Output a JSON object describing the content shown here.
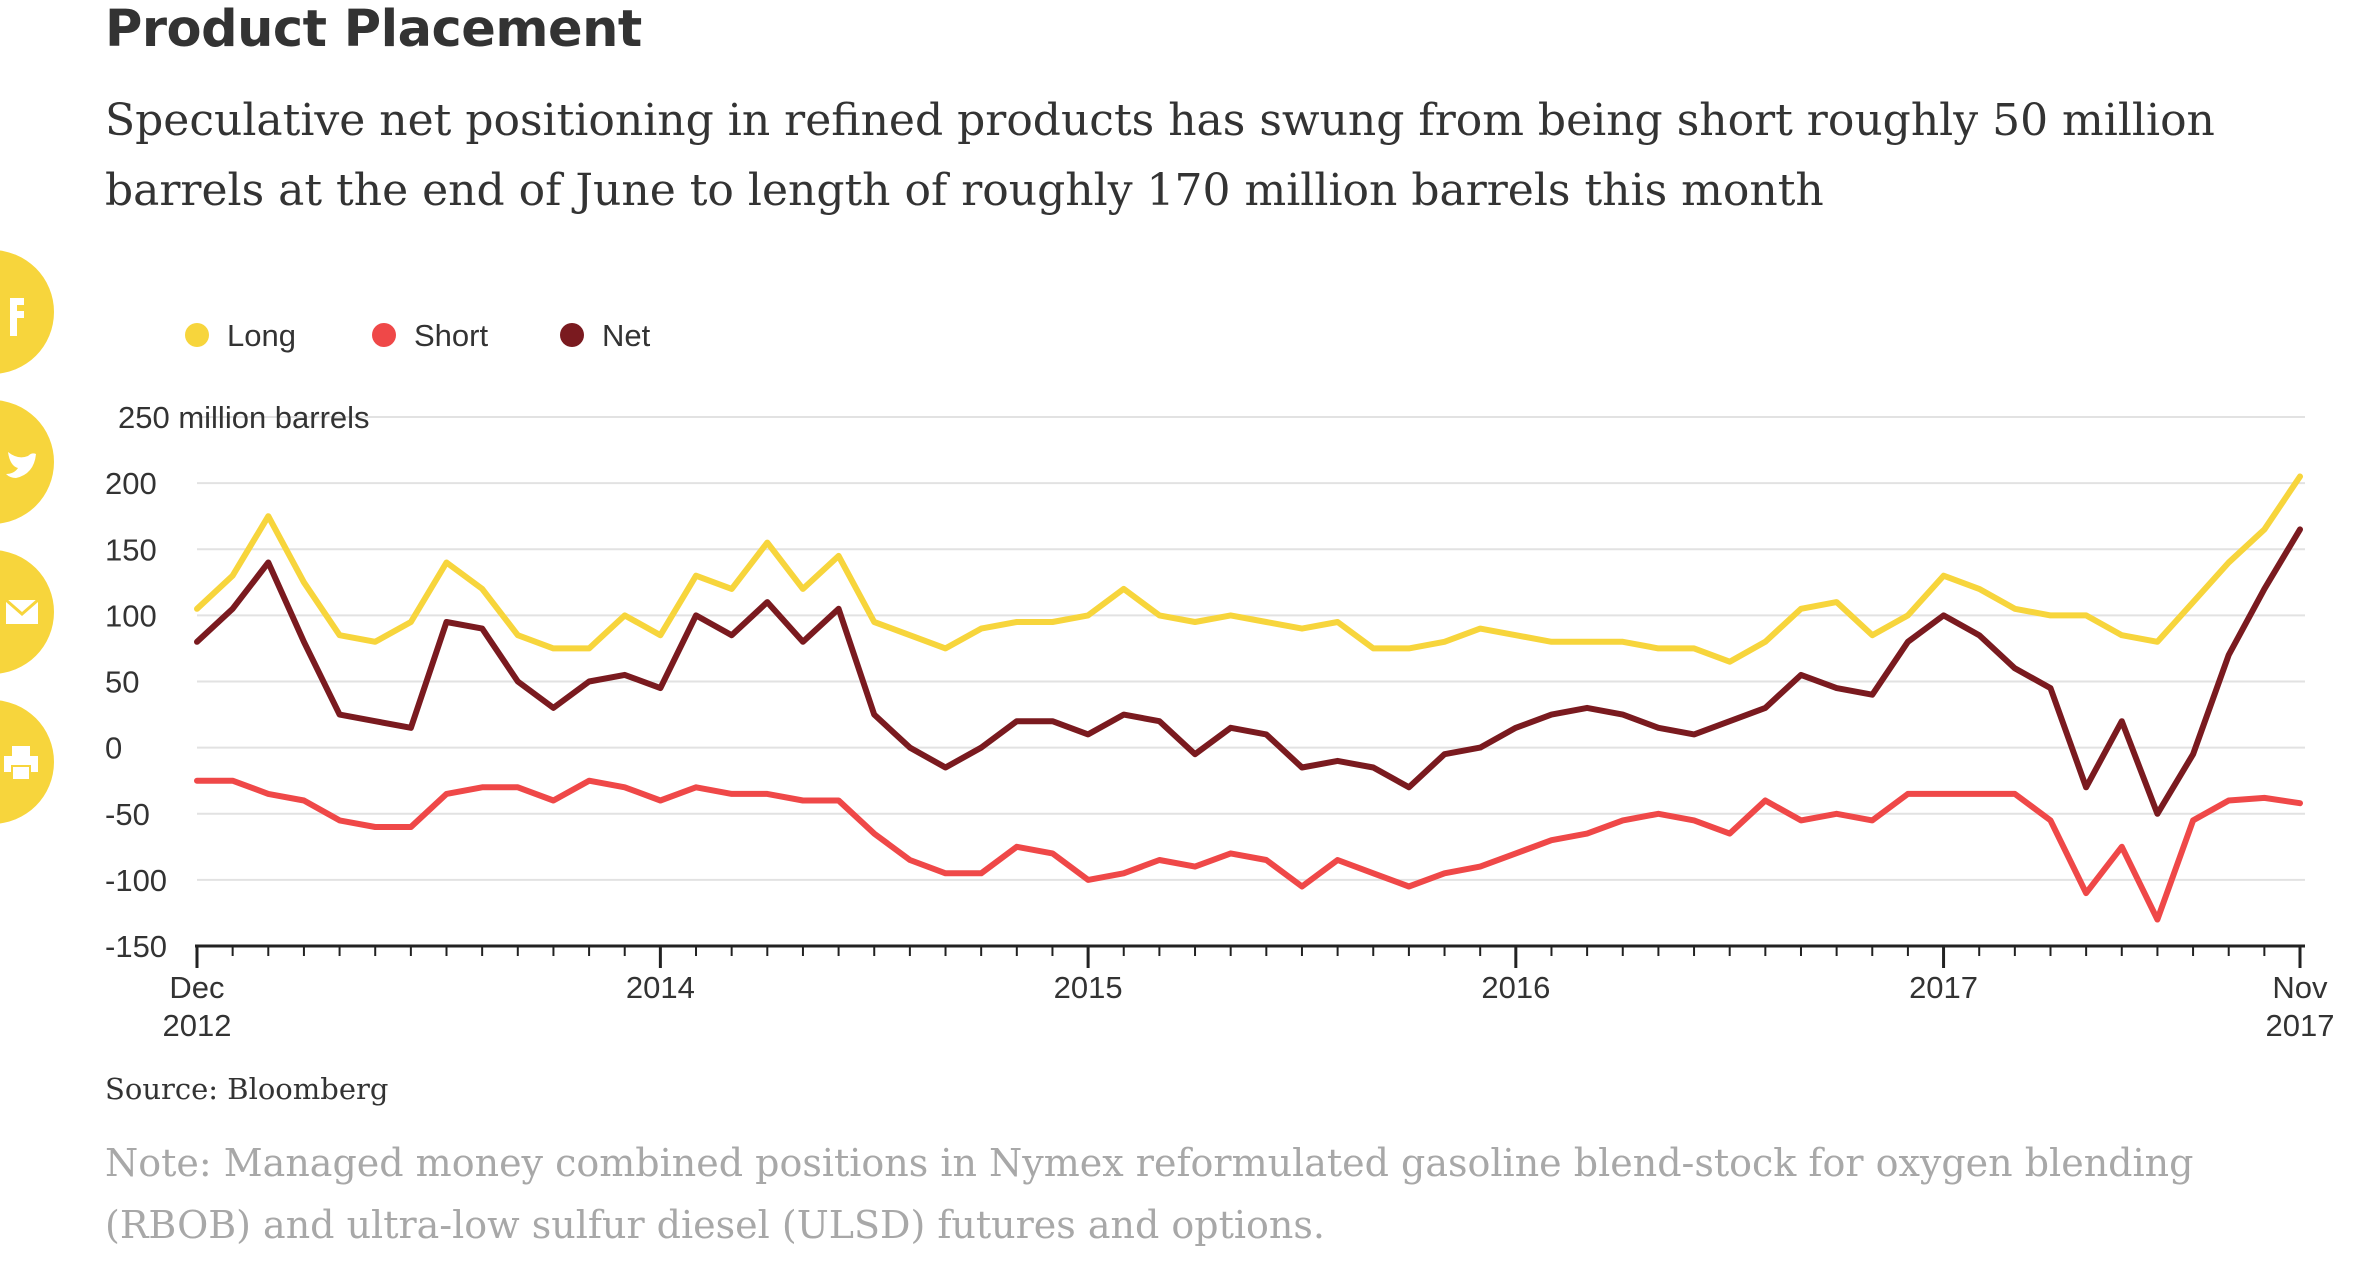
{
  "header": {
    "title": "Product Placement",
    "subtitle": "Speculative net positioning in refined products has swung from being short roughly 50 million barrels at the end of June to length of roughly 170 million barrels this month"
  },
  "share_buttons": [
    {
      "icon": "facebook-icon"
    },
    {
      "icon": "twitter-icon"
    },
    {
      "icon": "email-icon"
    },
    {
      "icon": "print-icon"
    }
  ],
  "footer": {
    "source": "Source: Bloomberg",
    "note": "Note: Managed money combined positions in Nymex reformulated gasoline blend-stock for oxygen blending (RBOB) and ultra-low sulfur diesel (ULSD) futures and options."
  },
  "chart_data": {
    "type": "line",
    "title": "",
    "xlabel": "",
    "ylabel": "250 million barrels",
    "ylim": [
      -150,
      250
    ],
    "xlim": [
      "2012-12",
      "2017-11"
    ],
    "grid": true,
    "legend_position": "top-left",
    "y_ticks": [
      "250 million barrels",
      "200",
      "150",
      "100",
      "50",
      "0",
      "-50",
      "-100",
      "-150"
    ],
    "y_tick_values": [
      250,
      200,
      150,
      100,
      50,
      0,
      -50,
      -100,
      -150
    ],
    "x_ticks": [
      {
        "date": "2012-12",
        "label": [
          "Dec",
          "2012"
        ]
      },
      {
        "date": "2014-01",
        "label": [
          "2014"
        ]
      },
      {
        "date": "2015-01",
        "label": [
          "2015"
        ]
      },
      {
        "date": "2016-01",
        "label": [
          "2016"
        ]
      },
      {
        "date": "2017-01",
        "label": [
          "2017"
        ]
      },
      {
        "date": "2017-11",
        "label": [
          "Nov",
          "2017"
        ]
      }
    ],
    "x": [
      "2012-12",
      "2013-01",
      "2013-02",
      "2013-03",
      "2013-04",
      "2013-05",
      "2013-06",
      "2013-07",
      "2013-08",
      "2013-09",
      "2013-10",
      "2013-11",
      "2013-12",
      "2014-01",
      "2014-02",
      "2014-03",
      "2014-04",
      "2014-05",
      "2014-06",
      "2014-07",
      "2014-08",
      "2014-09",
      "2014-10",
      "2014-11",
      "2014-12",
      "2015-01",
      "2015-02",
      "2015-03",
      "2015-04",
      "2015-05",
      "2015-06",
      "2015-07",
      "2015-08",
      "2015-09",
      "2015-10",
      "2015-11",
      "2015-12",
      "2016-01",
      "2016-02",
      "2016-03",
      "2016-04",
      "2016-05",
      "2016-06",
      "2016-07",
      "2016-08",
      "2016-09",
      "2016-10",
      "2016-11",
      "2016-12",
      "2017-01",
      "2017-02",
      "2017-03",
      "2017-04",
      "2017-05",
      "2017-06",
      "2017-07",
      "2017-08",
      "2017-09",
      "2017-10",
      "2017-11"
    ],
    "series": [
      {
        "name": "Long",
        "color": "#f7d53c",
        "values": [
          105,
          130,
          175,
          125,
          85,
          80,
          95,
          140,
          120,
          85,
          75,
          75,
          100,
          85,
          130,
          120,
          155,
          120,
          145,
          95,
          85,
          75,
          90,
          95,
          95,
          100,
          120,
          100,
          95,
          100,
          95,
          90,
          95,
          75,
          75,
          80,
          90,
          85,
          80,
          80,
          80,
          75,
          75,
          65,
          80,
          105,
          110,
          85,
          100,
          130,
          120,
          105,
          100,
          100,
          85,
          80,
          110,
          140,
          165,
          205
        ]
      },
      {
        "name": "Short",
        "color": "#ef4848",
        "values": [
          -25,
          -25,
          -35,
          -40,
          -55,
          -60,
          -60,
          -35,
          -30,
          -30,
          -40,
          -25,
          -30,
          -40,
          -30,
          -35,
          -35,
          -40,
          -40,
          -65,
          -85,
          -95,
          -95,
          -75,
          -80,
          -100,
          -95,
          -85,
          -90,
          -80,
          -85,
          -105,
          -85,
          -95,
          -105,
          -95,
          -90,
          -80,
          -70,
          -65,
          -55,
          -50,
          -55,
          -65,
          -40,
          -55,
          -50,
          -55,
          -35,
          -35,
          -35,
          -35,
          -55,
          -110,
          -75,
          -130,
          -55,
          -40,
          -38,
          -42
        ]
      },
      {
        "name": "Net",
        "color": "#7a1a1f",
        "values": [
          80,
          105,
          140,
          80,
          25,
          20,
          15,
          95,
          90,
          50,
          30,
          50,
          55,
          45,
          100,
          85,
          110,
          80,
          105,
          25,
          0,
          -15,
          0,
          20,
          20,
          10,
          25,
          20,
          -5,
          15,
          10,
          -15,
          -10,
          -15,
          -30,
          -5,
          0,
          15,
          25,
          30,
          25,
          15,
          10,
          20,
          30,
          55,
          45,
          40,
          80,
          100,
          85,
          60,
          45,
          -30,
          20,
          -50,
          -5,
          70,
          120,
          165
        ]
      }
    ]
  }
}
